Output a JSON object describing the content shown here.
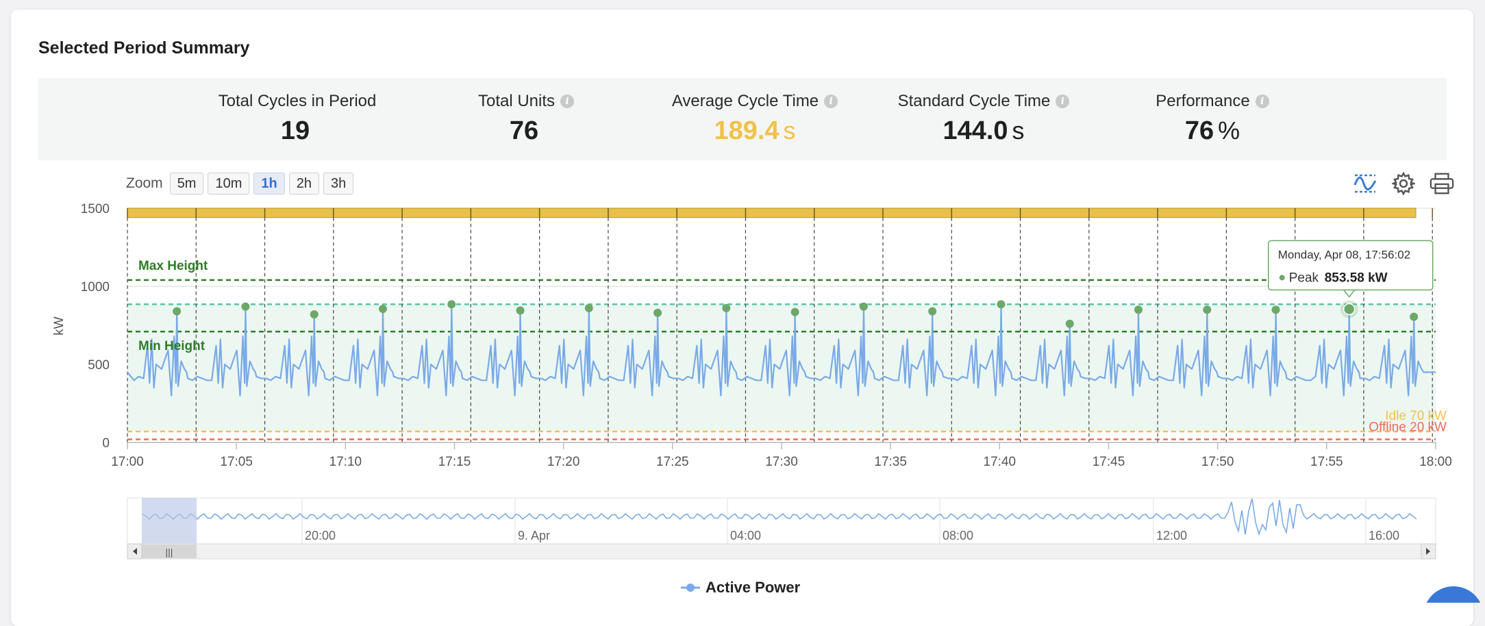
{
  "summary": {
    "title": "Selected Period Summary",
    "kpis": [
      {
        "label": "Total Cycles in Period",
        "value": "19",
        "unit": "",
        "info": false,
        "color": "#1f1f1f"
      },
      {
        "label": "Total Units",
        "value": "76",
        "unit": "",
        "info": true,
        "color": "#1f1f1f"
      },
      {
        "label": "Average Cycle Time",
        "value": "189.4",
        "unit": "s",
        "info": true,
        "color": "#f0c24a"
      },
      {
        "label": "Standard Cycle Time",
        "value": "144.0",
        "unit": "s",
        "info": true,
        "color": "#1f1f1f"
      },
      {
        "label": "Performance",
        "value": "76",
        "unit": "%",
        "info": true,
        "color": "#1f1f1f"
      }
    ]
  },
  "toolbar": {
    "zoom_label": "Zoom",
    "zoom_options": [
      "5m",
      "10m",
      "1h",
      "2h",
      "3h"
    ],
    "zoom_selected": "1h",
    "icons": [
      "series-toggle-icon",
      "gear-icon",
      "printer-icon"
    ]
  },
  "tooltip": {
    "date": "Monday, Apr 08, 17:56:02",
    "series": "Peak",
    "value": "853.58 kW"
  },
  "legend": {
    "label": "Active Power"
  },
  "colors": {
    "line": "#7aaae6",
    "peak": "#6ea869",
    "band": "#e8c04a",
    "max_line": "#2e7d25",
    "mid_line": "#55c8a8",
    "idle": "#f0c24a",
    "offline": "#ee6b5a"
  },
  "chart_data": {
    "type": "line",
    "ylabel": "kW",
    "ylim": [
      0,
      1500
    ],
    "yticks": [
      0,
      500,
      1000,
      1500
    ],
    "xlim": [
      "17:00",
      "18:00"
    ],
    "xticks": [
      "17:00",
      "17:05",
      "17:10",
      "17:15",
      "17:20",
      "17:25",
      "17:30",
      "17:35",
      "17:40",
      "17:45",
      "17:50",
      "17:55",
      "18:00"
    ],
    "baseline_kw": 450,
    "band_range_kw": [
      1440,
      1500
    ],
    "plot_lines": [
      {
        "label": "Max Height",
        "value": 1040,
        "style": "dashed"
      },
      {
        "label": "",
        "value": 885,
        "style": "dashed"
      },
      {
        "label": "Min Height",
        "value": 710,
        "style": "dashed"
      },
      {
        "label": "Idle 70 kW",
        "value": 70,
        "style": "dashed"
      },
      {
        "label": "Offline 20 kW",
        "value": 20,
        "style": "dashed"
      }
    ],
    "cycle_boundaries_min": [
      0,
      3.15,
      6.3,
      9.45,
      12.6,
      15.75,
      18.9,
      22.05,
      25.2,
      28.35,
      31.5,
      34.65,
      37.8,
      40.95,
      44.1,
      47.25,
      50.4,
      53.55,
      56.7,
      59.85
    ],
    "series": [
      {
        "name": "Peak",
        "points": [
          {
            "x": "17:02:16",
            "y": 840
          },
          {
            "x": "17:05:25",
            "y": 870
          },
          {
            "x": "17:08:34",
            "y": 820
          },
          {
            "x": "17:11:43",
            "y": 855
          },
          {
            "x": "17:14:52",
            "y": 885
          },
          {
            "x": "17:18:01",
            "y": 845
          },
          {
            "x": "17:21:10",
            "y": 860
          },
          {
            "x": "17:24:19",
            "y": 830
          },
          {
            "x": "17:27:28",
            "y": 860
          },
          {
            "x": "17:30:37",
            "y": 835
          },
          {
            "x": "17:33:46",
            "y": 870
          },
          {
            "x": "17:36:55",
            "y": 840
          },
          {
            "x": "17:40:04",
            "y": 885
          },
          {
            "x": "17:43:13",
            "y": 760
          },
          {
            "x": "17:46:22",
            "y": 850
          },
          {
            "x": "17:49:31",
            "y": 850
          },
          {
            "x": "17:52:40",
            "y": 850
          },
          {
            "x": "17:56:02",
            "y": 853.58
          },
          {
            "x": "17:59:00",
            "y": 805
          }
        ]
      },
      {
        "name": "Active Power",
        "values_note": ""
      }
    ],
    "navigator": {
      "labels": [
        "20:00",
        "9. Apr",
        "04:00",
        "08:00",
        "12:00",
        "16:00"
      ]
    }
  }
}
